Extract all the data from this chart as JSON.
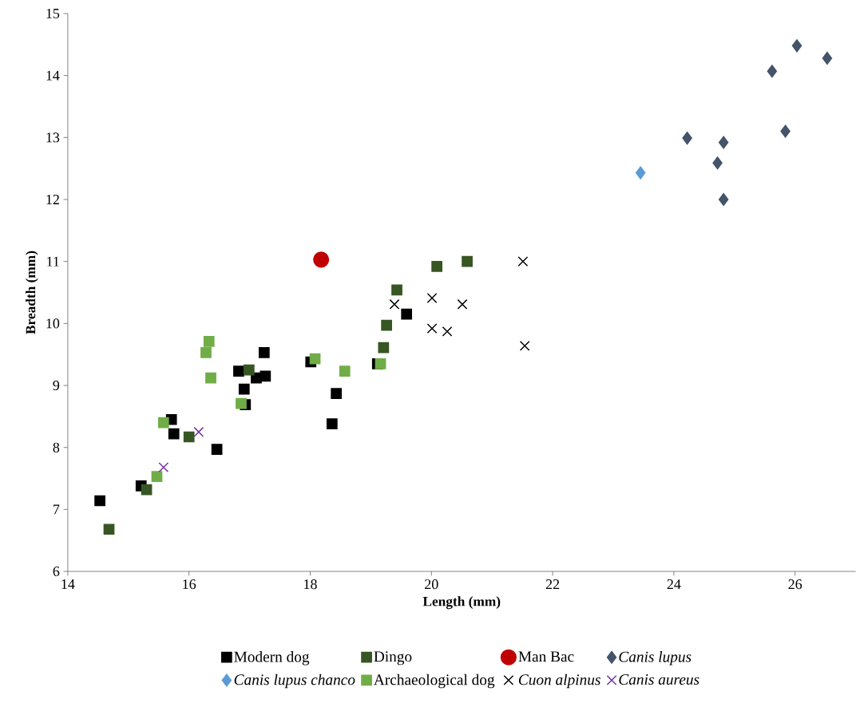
{
  "chart_data": {
    "type": "scatter",
    "xlabel": "Length (mm)",
    "ylabel": "Breadth (mm)",
    "xlim": [
      14,
      27
    ],
    "xticks": [
      14,
      16,
      18,
      20,
      22,
      24,
      26
    ],
    "ylim": [
      6,
      15
    ],
    "yticks": [
      6,
      7,
      8,
      9,
      10,
      11,
      12,
      13,
      14,
      15
    ],
    "grid": false,
    "legend": "bottom",
    "series": [
      {
        "name": "Modern dog",
        "color": "#000000",
        "marker": "square",
        "x": [
          14.53,
          15.21,
          15.71,
          15.75,
          16.46,
          16.82,
          16.91,
          16.93,
          17.11,
          17.26,
          17.24,
          18.01,
          18.43,
          18.36,
          19.11,
          19.59
        ],
        "values": [
          7.14,
          7.38,
          8.45,
          8.22,
          7.97,
          9.23,
          8.94,
          8.69,
          9.12,
          9.15,
          9.53,
          9.38,
          8.87,
          8.38,
          9.35,
          10.15
        ]
      },
      {
        "name": "Dingo",
        "color": "#375623",
        "marker": "square",
        "x": [
          14.68,
          15.3,
          16.0,
          16.99,
          19.21,
          19.26,
          19.43,
          20.09,
          20.59
        ],
        "values": [
          6.68,
          7.32,
          8.17,
          9.25,
          9.61,
          9.97,
          10.54,
          10.92,
          11.0
        ]
      },
      {
        "name": "Man Bac",
        "color": "#c00000",
        "marker": "circle",
        "x": [
          18.18
        ],
        "values": [
          11.03
        ]
      },
      {
        "name": "*Canis lupus*",
        "color": "#44546a",
        "marker": "diamond",
        "x": [
          26.03,
          26.53,
          25.62,
          25.84,
          24.22,
          24.82,
          24.72,
          24.82
        ],
        "values": [
          14.48,
          14.28,
          14.07,
          13.1,
          12.99,
          12.92,
          12.59,
          12.0
        ]
      },
      {
        "name": "*Canis lupus chanco*",
        "color": "#5b9bd5",
        "marker": "diamond",
        "x": [
          23.45
        ],
        "values": [
          12.43
        ]
      },
      {
        "name": "Archaeological dog",
        "color": "#70ad47",
        "marker": "square",
        "x": [
          16.33,
          16.28,
          16.36,
          16.86,
          15.58,
          15.47,
          18.08,
          18.57,
          19.16
        ],
        "values": [
          9.71,
          9.53,
          9.12,
          8.71,
          8.4,
          7.53,
          9.43,
          9.23,
          9.35
        ]
      },
      {
        "name": "*Cuon alpinus*",
        "color": "#000000",
        "marker": "cross",
        "x": [
          19.39,
          20.01,
          20.51,
          20.01,
          20.26,
          21.51,
          21.54
        ],
        "values": [
          10.31,
          10.41,
          10.31,
          9.92,
          9.87,
          11.0,
          9.64
        ]
      },
      {
        "name": "*Canis aureus*",
        "color": "#7030a0",
        "marker": "cross",
        "x": [
          16.16,
          15.58
        ],
        "values": [
          8.25,
          7.68
        ]
      }
    ]
  }
}
